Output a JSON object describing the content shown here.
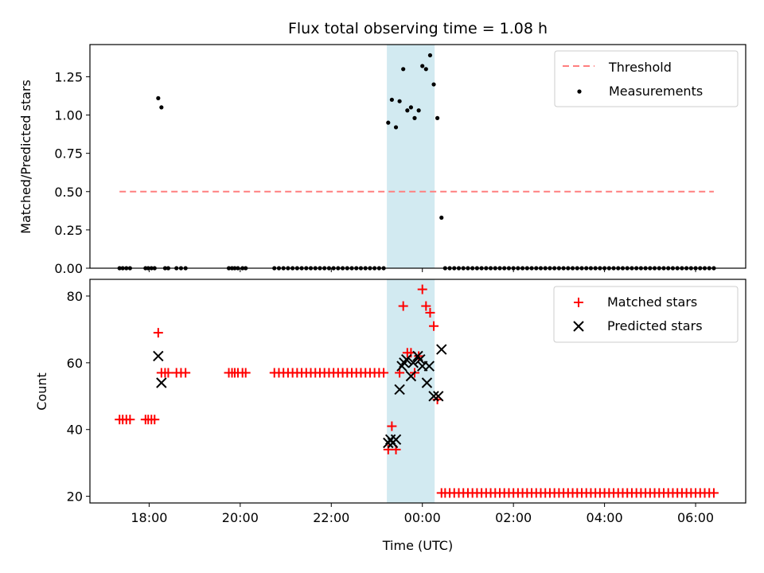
{
  "title": "Flux total observing time = 1.08 h",
  "colors": {
    "threshold": "#ff7f7f",
    "measurements": "#000000",
    "matched": "#ff0000",
    "predicted": "#000000",
    "span": "#add8e6"
  },
  "chart_data": [
    {
      "type": "scatter",
      "ylabel": "Matched/Predicted stars",
      "xlim": [
        16.7,
        31.1
      ],
      "ylim": [
        0,
        1.46
      ],
      "yticks": [
        0.0,
        0.25,
        0.5,
        0.75,
        1.0,
        1.25
      ],
      "ytick_labels": [
        "0.00",
        "0.25",
        "0.50",
        "0.75",
        "1.00",
        "1.25"
      ],
      "legend_position": "upper right",
      "legend": [
        {
          "label": "Threshold",
          "kind": "dashed-line"
        },
        {
          "label": "Measurements",
          "kind": "dot"
        }
      ],
      "highlight_span": {
        "start": 23.22,
        "end": 24.27
      },
      "threshold": {
        "value": 0.5,
        "x": [
          17.35,
          30.4
        ]
      },
      "measurements": {
        "x": [
          17.35,
          17.42,
          17.5,
          17.58,
          17.92,
          17.98,
          18.05,
          18.12,
          18.2,
          18.27,
          18.35,
          18.42,
          18.6,
          18.7,
          18.8,
          19.75,
          19.82,
          19.88,
          19.95,
          20.05,
          20.12,
          20.75,
          20.85,
          20.95,
          21.05,
          21.15,
          21.25,
          21.35,
          21.45,
          21.55,
          21.65,
          21.75,
          21.85,
          21.95,
          22.05,
          22.15,
          22.25,
          22.35,
          22.45,
          22.55,
          22.65,
          22.75,
          22.85,
          22.95,
          23.05,
          23.15,
          23.25,
          23.33,
          23.42,
          23.5,
          23.58,
          23.67,
          23.75,
          23.83,
          23.92,
          24.0,
          24.08,
          24.17,
          24.25,
          24.33,
          24.42,
          24.5,
          24.6,
          24.7,
          24.8,
          24.9,
          25.0,
          25.1,
          25.2,
          25.3,
          25.4,
          25.5,
          25.6,
          25.7,
          25.8,
          25.9,
          26.0,
          26.1,
          26.2,
          26.3,
          26.4,
          26.5,
          26.6,
          26.7,
          26.8,
          26.9,
          27.0,
          27.1,
          27.2,
          27.3,
          27.4,
          27.5,
          27.6,
          27.7,
          27.8,
          27.9,
          28.0,
          28.1,
          28.2,
          28.3,
          28.4,
          28.5,
          28.6,
          28.7,
          28.8,
          28.9,
          29.0,
          29.1,
          29.2,
          29.3,
          29.4,
          29.5,
          29.6,
          29.7,
          29.8,
          29.9,
          30.0,
          30.1,
          30.2,
          30.3,
          30.4
        ],
        "y": [
          0,
          0,
          0,
          0,
          0,
          0,
          0,
          0,
          1.11,
          1.05,
          0,
          0,
          0,
          0,
          0,
          0,
          0,
          0,
          0,
          0,
          0,
          0,
          0,
          0,
          0,
          0,
          0,
          0,
          0,
          0,
          0,
          0,
          0,
          0,
          0,
          0,
          0,
          0,
          0,
          0,
          0,
          0,
          0,
          0,
          0,
          0,
          0.95,
          1.1,
          0.92,
          1.09,
          1.3,
          1.03,
          1.05,
          0.98,
          1.03,
          1.32,
          1.3,
          1.39,
          1.2,
          0.98,
          0.33,
          0,
          0,
          0,
          0,
          0,
          0,
          0,
          0,
          0,
          0,
          0,
          0,
          0,
          0,
          0,
          0,
          0,
          0,
          0,
          0,
          0,
          0,
          0,
          0,
          0,
          0,
          0,
          0,
          0,
          0,
          0,
          0,
          0,
          0,
          0,
          0,
          0,
          0,
          0,
          0,
          0,
          0,
          0,
          0,
          0,
          0,
          0,
          0,
          0,
          0,
          0,
          0,
          0,
          0,
          0,
          0,
          0,
          0,
          0,
          0
        ]
      }
    },
    {
      "type": "scatter",
      "ylabel": "Count",
      "xlabel": "Time (UTC)",
      "xlim": [
        16.7,
        31.1
      ],
      "ylim": [
        18,
        85
      ],
      "yticks": [
        20,
        40,
        60,
        80
      ],
      "xticks": [
        18,
        20,
        22,
        24,
        26,
        28,
        30
      ],
      "xtick_labels": [
        "18:00",
        "20:00",
        "22:00",
        "00:00",
        "02:00",
        "04:00",
        "06:00"
      ],
      "legend_position": "upper right",
      "legend": [
        {
          "label": "Matched stars",
          "kind": "plus"
        },
        {
          "label": "Predicted stars",
          "kind": "x"
        }
      ],
      "highlight_span": {
        "start": 23.22,
        "end": 24.27
      },
      "matched": {
        "x": [
          17.35,
          17.42,
          17.5,
          17.58,
          17.92,
          17.98,
          18.05,
          18.12,
          18.2,
          18.27,
          18.35,
          18.42,
          18.6,
          18.7,
          18.8,
          19.75,
          19.82,
          19.88,
          19.95,
          20.05,
          20.12,
          20.75,
          20.85,
          20.95,
          21.05,
          21.15,
          21.25,
          21.35,
          21.45,
          21.55,
          21.65,
          21.75,
          21.85,
          21.95,
          22.05,
          22.15,
          22.25,
          22.35,
          22.45,
          22.55,
          22.65,
          22.75,
          22.85,
          22.95,
          23.05,
          23.15,
          23.25,
          23.33,
          23.42,
          23.5,
          23.58,
          23.67,
          23.75,
          23.83,
          23.92,
          24.0,
          24.08,
          24.17,
          24.25,
          24.33,
          24.42,
          24.5,
          24.6,
          24.7,
          24.8,
          24.9,
          25.0,
          25.1,
          25.2,
          25.3,
          25.4,
          25.5,
          25.6,
          25.7,
          25.8,
          25.9,
          26.0,
          26.1,
          26.2,
          26.3,
          26.4,
          26.5,
          26.6,
          26.7,
          26.8,
          26.9,
          27.0,
          27.1,
          27.2,
          27.3,
          27.4,
          27.5,
          27.6,
          27.7,
          27.8,
          27.9,
          28.0,
          28.1,
          28.2,
          28.3,
          28.4,
          28.5,
          28.6,
          28.7,
          28.8,
          28.9,
          29.0,
          29.1,
          29.2,
          29.3,
          29.4,
          29.5,
          29.6,
          29.7,
          29.8,
          29.9,
          30.0,
          30.1,
          30.2,
          30.3,
          30.4
        ],
        "y": [
          43,
          43,
          43,
          43,
          43,
          43,
          43,
          43,
          69,
          57,
          57,
          57,
          57,
          57,
          57,
          57,
          57,
          57,
          57,
          57,
          57,
          57,
          57,
          57,
          57,
          57,
          57,
          57,
          57,
          57,
          57,
          57,
          57,
          57,
          57,
          57,
          57,
          57,
          57,
          57,
          57,
          57,
          57,
          57,
          57,
          57,
          34,
          41,
          34,
          57,
          77,
          63,
          63,
          57,
          62,
          82,
          77,
          75,
          71,
          49,
          21,
          21,
          21,
          21,
          21,
          21,
          21,
          21,
          21,
          21,
          21,
          21,
          21,
          21,
          21,
          21,
          21,
          21,
          21,
          21,
          21,
          21,
          21,
          21,
          21,
          21,
          21,
          21,
          21,
          21,
          21,
          21,
          21,
          21,
          21,
          21,
          21,
          21,
          21,
          21,
          21,
          21,
          21,
          21,
          21,
          21,
          21,
          21,
          21,
          21,
          21,
          21,
          21,
          21,
          21,
          21,
          21,
          21,
          21,
          21,
          21
        ]
      },
      "predicted": {
        "x": [
          18.2,
          18.27,
          23.25,
          23.3,
          23.35,
          23.42,
          23.5,
          23.55,
          23.6,
          23.65,
          23.75,
          23.8,
          23.9,
          23.95,
          24.0,
          24.1,
          24.15,
          24.25,
          24.35,
          24.42
        ],
        "y": [
          62,
          54,
          36,
          37,
          36,
          37,
          52,
          59,
          60,
          61,
          56,
          60,
          62,
          61,
          59,
          54,
          59,
          50,
          50,
          64
        ]
      }
    }
  ]
}
